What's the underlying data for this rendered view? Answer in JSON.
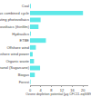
{
  "chart_data": {
    "type": "bar",
    "orientation": "horizontal",
    "categories": [
      "Coal",
      "Gas combined cycle",
      "Concentrating photovoltaics",
      "Photovoltaics (thinfilm)",
      "Hydraulics",
      "ETBE",
      "Offshore wind",
      "Onshore wind power",
      "Organic waste",
      "Bioethanol (Sugarcane)",
      "Biogas",
      "Forest"
    ],
    "values": [
      0.3,
      20,
      4.0,
      3.2,
      0.3,
      6.0,
      2.2,
      1.0,
      1.5,
      3.8,
      1.8,
      0.2
    ],
    "color": "#5ee8e8",
    "xlabel": "Ozone depletion potential [μg CFC11-eq/kWh]",
    "xlim": [
      0,
      22
    ],
    "xticks": [
      0,
      4,
      8,
      12,
      16,
      20
    ],
    "grid": false
  }
}
